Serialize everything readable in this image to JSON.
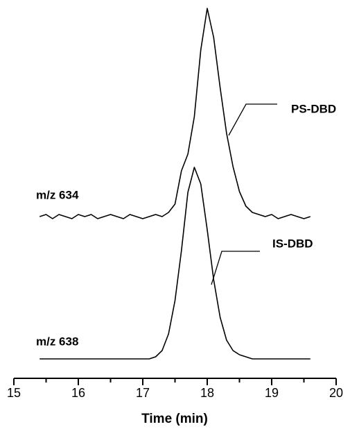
{
  "chart_data": {
    "type": "line",
    "xlabel": "Time (min)",
    "xlim": [
      15,
      20
    ],
    "xticks": [
      15,
      16,
      17,
      18,
      19,
      20
    ],
    "xminorticks": [
      15.5,
      16.5,
      17.5,
      18.5,
      19.5
    ],
    "x": [
      15.4,
      15.5,
      15.6,
      15.7,
      15.8,
      15.9,
      16.0,
      16.1,
      16.2,
      16.3,
      16.4,
      16.5,
      16.6,
      16.7,
      16.8,
      16.9,
      17.0,
      17.1,
      17.2,
      17.3,
      17.4,
      17.5,
      17.6,
      17.7,
      17.8,
      17.9,
      18.0,
      18.1,
      18.2,
      18.3,
      18.4,
      18.5,
      18.6,
      18.7,
      18.8,
      18.9,
      19.0,
      19.1,
      19.2,
      19.3,
      19.4,
      19.5,
      19.6
    ],
    "series": [
      {
        "name": "PS-DBD",
        "label": "m/z 634",
        "color": "#000000",
        "values": [
          0,
          1,
          -1,
          1,
          0,
          -1,
          1,
          0,
          1,
          -1,
          0,
          1,
          0,
          -1,
          1,
          0,
          -1,
          0,
          1,
          0,
          2,
          6,
          22,
          30,
          48,
          80,
          100,
          86,
          62,
          40,
          24,
          12,
          5,
          2,
          1,
          0,
          1,
          -1,
          0,
          1,
          0,
          -1,
          0
        ]
      },
      {
        "name": "IS-DBD",
        "label": "m/z 638",
        "color": "#000000",
        "values": [
          0,
          0,
          0,
          0,
          0,
          0,
          0,
          0,
          0,
          0,
          0,
          0,
          0,
          0,
          0,
          0,
          0,
          0,
          1,
          4,
          12,
          28,
          52,
          80,
          92,
          84,
          62,
          38,
          20,
          9,
          4,
          2,
          1,
          0,
          0,
          0,
          0,
          0,
          0,
          0,
          0,
          0,
          0
        ]
      }
    ]
  }
}
